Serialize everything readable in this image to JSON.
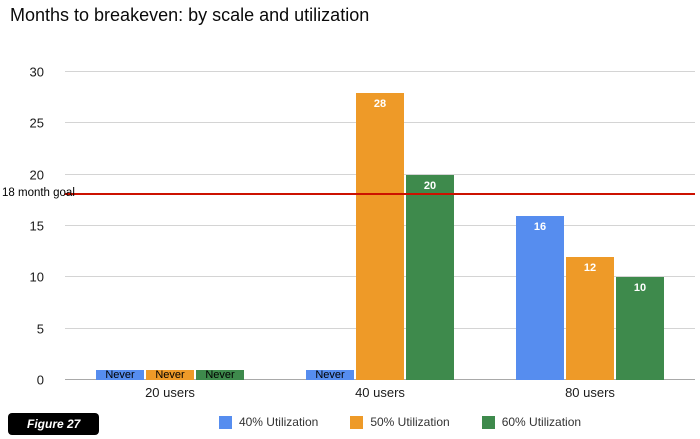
{
  "figure_badge": "Figure 27",
  "chart_data": {
    "type": "bar",
    "title": "Months to breakeven: by scale and utilization",
    "categories": [
      "20 users",
      "40 users",
      "80 users"
    ],
    "series": [
      {
        "name": "40% Utilization",
        "color": "#568def",
        "values": [
          1,
          1,
          16
        ],
        "labels": [
          "Never",
          "Never",
          "16"
        ]
      },
      {
        "name": "50% Utilization",
        "color": "#ee9a28",
        "values": [
          1,
          28,
          12
        ],
        "labels": [
          "Never",
          "28",
          "12"
        ]
      },
      {
        "name": "60% Utilization",
        "color": "#3e8a4c",
        "values": [
          1,
          20,
          10
        ],
        "labels": [
          "Never",
          "20",
          "10"
        ]
      }
    ],
    "ylim": [
      0,
      30
    ],
    "yticks": [
      0,
      5,
      10,
      15,
      20,
      25,
      30
    ],
    "goal_line": {
      "value": 18,
      "label": "18 month goal",
      "color": "#cc1100"
    },
    "grid": true,
    "legend_position": "bottom"
  }
}
